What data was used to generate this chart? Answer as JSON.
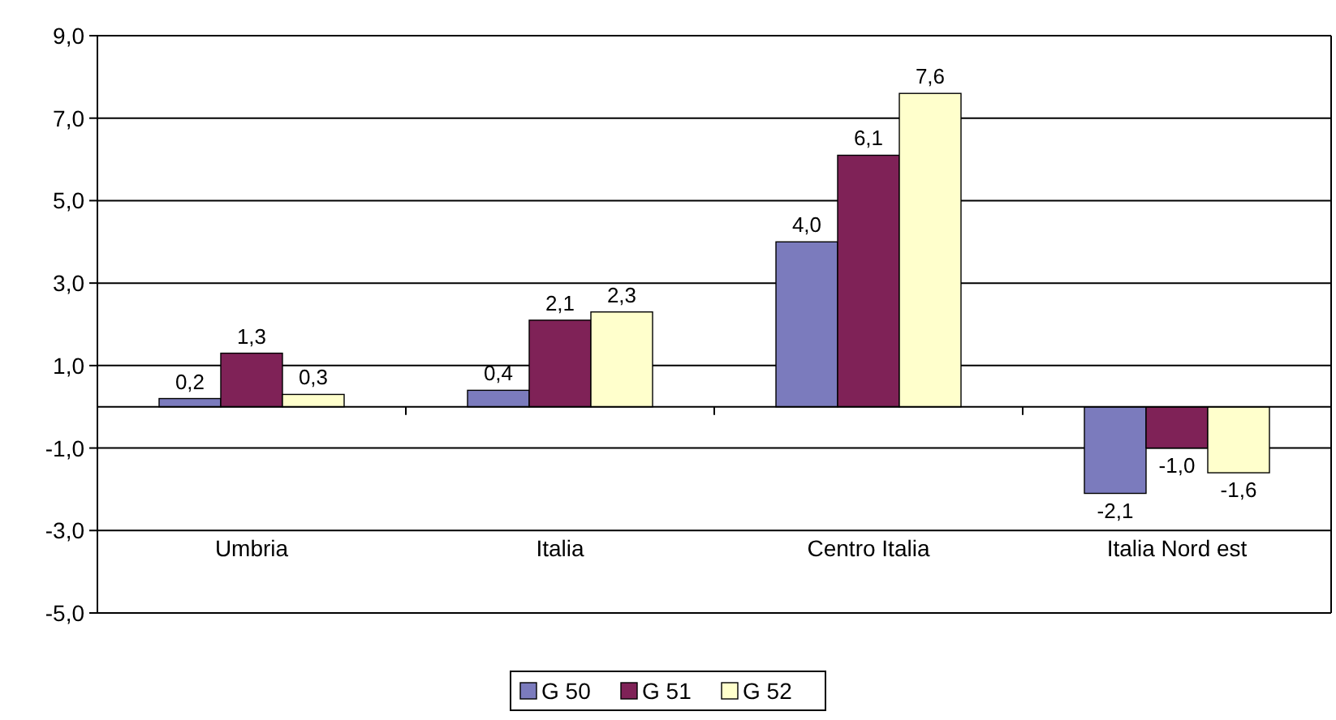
{
  "chart_data": {
    "type": "bar",
    "categories": [
      "Umbria",
      "Italia",
      "Centro Italia",
      "Italia Nord est"
    ],
    "series": [
      {
        "name": "G 50",
        "color": "#7b7bbd",
        "values": [
          0.2,
          0.4,
          4.0,
          -2.1
        ],
        "value_labels": [
          "0,2",
          "0,4",
          "4,0",
          "-2,1"
        ]
      },
      {
        "name": "G 51",
        "color": "#7f2257",
        "values": [
          1.3,
          2.1,
          6.1,
          -1.0
        ],
        "value_labels": [
          "1,3",
          "2,1",
          "6,1",
          "-1,0"
        ]
      },
      {
        "name": "G 52",
        "color": "#ffffcc",
        "values": [
          0.3,
          2.3,
          7.6,
          -1.6
        ],
        "value_labels": [
          "0,3",
          "2,3",
          "7,6",
          "-1,6"
        ]
      }
    ],
    "ylim": [
      -5,
      9
    ],
    "yticks": [
      {
        "value": -5,
        "label": "-5,0"
      },
      {
        "value": -3,
        "label": "-3,0"
      },
      {
        "value": -1,
        "label": "-1,0"
      },
      {
        "value": 1,
        "label": "1,0"
      },
      {
        "value": 3,
        "label": "3,0"
      },
      {
        "value": 5,
        "label": "5,0"
      },
      {
        "value": 7,
        "label": "7,0"
      },
      {
        "value": 9,
        "label": "9,0"
      }
    ],
    "grid": "y",
    "legend": "bottom"
  }
}
